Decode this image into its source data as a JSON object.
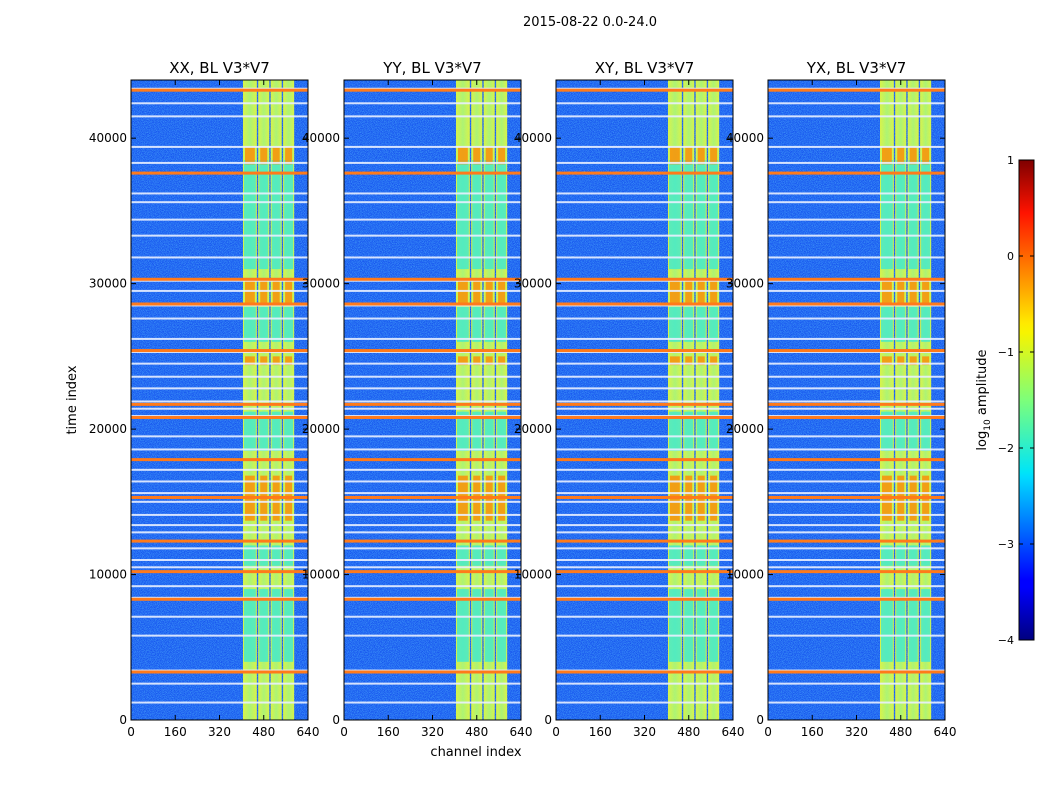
{
  "chart_data": {
    "type": "heatmap",
    "suptitle": "2015-08-22 0.0-24.0",
    "xlabel": "channel index",
    "ylabel": "time index",
    "xlim": [
      0,
      640
    ],
    "ylim": [
      0,
      44000
    ],
    "xticks": [
      "0",
      "160",
      "320",
      "480",
      "640"
    ],
    "yticks": [
      "0",
      "10000",
      "20000",
      "30000",
      "40000"
    ],
    "ytick_values": [
      0,
      10000,
      20000,
      30000,
      40000
    ],
    "xtick_values": [
      0,
      160,
      320,
      480,
      640
    ],
    "panels": [
      {
        "title": "XX, BL V3*V7",
        "polarization": "XX"
      },
      {
        "title": "YY, BL V3*V7",
        "polarization": "YY"
      },
      {
        "title": "XY, BL V3*V7",
        "polarization": "XY"
      },
      {
        "title": "YX, BL V3*V7",
        "polarization": "YX"
      }
    ],
    "colorbar": {
      "label": "log10 amplitude",
      "label_main": "log",
      "label_sub": "10",
      "label_suffix": " amplitude",
      "range": [
        -4,
        1
      ],
      "ticks": [
        "1",
        "0",
        "−1",
        "−2",
        "−3",
        "−4"
      ],
      "tick_values": [
        1,
        0,
        -1,
        -2,
        -3,
        -4
      ],
      "colormap": "jet"
    },
    "rfi_bands_channels": [
      [
        405,
        455
      ],
      [
        460,
        500
      ],
      [
        505,
        545
      ],
      [
        550,
        590
      ]
    ],
    "flagged_rows_time_index": [
      1200,
      2500,
      3400,
      5800,
      7100,
      8400,
      9200,
      10500,
      11000,
      11800,
      12300,
      12900,
      13400,
      14100,
      15000,
      15600,
      16400,
      17200,
      17900,
      18600,
      19500,
      20900,
      21400,
      21900,
      22800,
      23600,
      24500,
      25300,
      26200,
      27600,
      28500,
      29500,
      30200,
      31800,
      33300,
      34400,
      35600,
      36200,
      37600,
      38300,
      39400,
      41500,
      42400,
      43400
    ],
    "strong_rows_time_index": [
      3300,
      8300,
      10200,
      12300,
      15300,
      17900,
      20800,
      21700,
      25400,
      28600,
      30300,
      37600,
      43300
    ]
  }
}
